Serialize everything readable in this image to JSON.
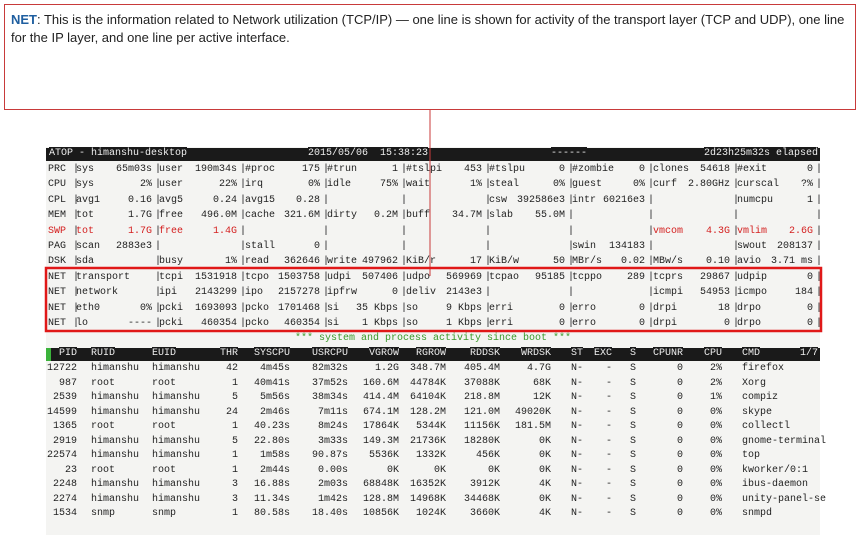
{
  "callout": {
    "term": "NET",
    "text": ": This is the information related to Network utilization (TCP/IP) — one line is shown for activity of the transport layer (TCP and UDP), one line for the IP layer, and one line per active interface."
  },
  "atop": {
    "header": {
      "host": "ATOP - himanshu-desktop",
      "datetime": "2015/05/06  15:38:23",
      "dashes": "------",
      "elapsed": "2d23h25m32s elapsed"
    },
    "rows": [
      {
        "label": "PRC",
        "cells": [
          [
            "sys",
            "65m03s"
          ],
          [
            "user",
            "190m34s"
          ],
          [
            "#proc",
            "175"
          ],
          [
            "#trun",
            "1"
          ],
          [
            "#tslpi",
            "453"
          ],
          [
            "#tslpu",
            "0"
          ],
          [
            "#zombie",
            "0"
          ],
          [
            "clones",
            "54618"
          ],
          [
            "#exit",
            "0"
          ]
        ]
      },
      {
        "label": "CPU",
        "cells": [
          [
            "sys",
            "2%"
          ],
          [
            "user",
            "22%"
          ],
          [
            "irq",
            "0%"
          ],
          [
            "idle",
            "75%"
          ],
          [
            "wait",
            "1%"
          ],
          [
            "steal",
            "0%"
          ],
          [
            "guest",
            "0%"
          ],
          [
            "curf",
            "2.80GHz"
          ],
          [
            "curscal",
            "?%"
          ]
        ]
      },
      {
        "label": "CPL",
        "cells": [
          [
            "avg1",
            "0.16"
          ],
          [
            "avg5",
            "0.24"
          ],
          [
            "avg15",
            "0.28"
          ],
          [],
          [],
          [
            "csw",
            "392586e3"
          ],
          [
            "intr",
            "60216e3"
          ],
          [],
          [
            "numcpu",
            "1"
          ]
        ]
      },
      {
        "label": "MEM",
        "cells": [
          [
            "tot",
            "1.7G"
          ],
          [
            "free",
            "496.0M"
          ],
          [
            "cache",
            "321.6M"
          ],
          [
            "dirty",
            "0.2M"
          ],
          [
            "buff",
            "34.7M"
          ],
          [
            "slab",
            "55.0M"
          ],
          [],
          [],
          []
        ]
      },
      {
        "label": "SWP",
        "color": "#d42020",
        "cells": [
          [
            "tot",
            "1.7G"
          ],
          [
            "free",
            "1.4G"
          ],
          [],
          [],
          [],
          [],
          [],
          [
            "vmcom",
            "4.3G"
          ],
          [
            "vmlim",
            "2.6G"
          ]
        ]
      },
      {
        "label": "PAG",
        "cells": [
          [
            "scan",
            "2883e3"
          ],
          [],
          [
            "stall",
            "0"
          ],
          [],
          [],
          [],
          [
            "swin",
            "134183"
          ],
          [],
          [
            "swout",
            "208137"
          ]
        ]
      },
      {
        "label": "DSK",
        "cells": [
          [
            "sda"
          ],
          [
            "busy",
            "1%"
          ],
          [
            "read",
            "362646"
          ],
          [
            "write",
            "497962"
          ],
          [
            "KiB/r",
            "17"
          ],
          [
            "KiB/w",
            "50"
          ],
          [
            "MBr/s",
            "0.02"
          ],
          [
            "MBw/s",
            "0.10"
          ],
          [
            "avio",
            "3.71 ms"
          ]
        ]
      },
      {
        "label": "NET",
        "cells": [
          [
            "transport"
          ],
          [
            "tcpi",
            "1531918"
          ],
          [
            "tcpo",
            "1503758"
          ],
          [
            "udpi",
            "507406"
          ],
          [
            "udpo",
            "569969"
          ],
          [
            "tcpao",
            "95185"
          ],
          [
            "tcppo",
            "289"
          ],
          [
            "tcprs",
            "29867"
          ],
          [
            "udpip",
            "0"
          ]
        ]
      },
      {
        "label": "NET",
        "cells": [
          [
            "network"
          ],
          [
            "ipi",
            "2143299"
          ],
          [
            "ipo",
            "2157278"
          ],
          [
            "ipfrw",
            "0"
          ],
          [
            "deliv",
            "2143e3"
          ],
          [],
          [],
          [
            "icmpi",
            "54953"
          ],
          [
            "icmpo",
            "184"
          ]
        ]
      },
      {
        "label": "NET",
        "cells": [
          [
            "eth0",
            "0%"
          ],
          [
            "pcki",
            "1693093"
          ],
          [
            "pcko",
            "1701468"
          ],
          [
            "si",
            "35 Kbps"
          ],
          [
            "so",
            "9 Kbps"
          ],
          [
            "erri",
            "0"
          ],
          [
            "erro",
            "0"
          ],
          [
            "drpi",
            "18"
          ],
          [
            "drpo",
            "0"
          ]
        ]
      },
      {
        "label": "NET",
        "cells": [
          [
            "lo",
            "----"
          ],
          [
            "pcki",
            "460354"
          ],
          [
            "pcko",
            "460354"
          ],
          [
            "si",
            "1 Kbps"
          ],
          [
            "so",
            "1 Kbps"
          ],
          [
            "erri",
            "0"
          ],
          [
            "erro",
            "0"
          ],
          [
            "drpi",
            "0"
          ],
          [
            "drpo",
            "0"
          ]
        ]
      }
    ],
    "banner": "*** system and process activity since boot ***",
    "proc": {
      "columns": [
        "PID",
        "RUID",
        "EUID",
        "THR",
        "SYSCPU",
        "USRCPU",
        "VGROW",
        "RGROW",
        "RDDSK",
        "WRDSK",
        "ST",
        "EXC",
        "S",
        "CPUNR",
        "CPU",
        "CMD"
      ],
      "page": "1/7",
      "rows": [
        [
          "12722",
          "himanshu",
          "himanshu",
          "42",
          "4m45s",
          "82m32s",
          "1.2G",
          "348.7M",
          "405.4M",
          "4.7G",
          "N-",
          "-",
          "S",
          "0",
          "2%",
          "firefox"
        ],
        [
          "987",
          "root",
          "root",
          "1",
          "40m41s",
          "37m52s",
          "160.6M",
          "44784K",
          "37088K",
          "68K",
          "N-",
          "-",
          "S",
          "0",
          "2%",
          "Xorg"
        ],
        [
          "2539",
          "himanshu",
          "himanshu",
          "5",
          "5m56s",
          "38m34s",
          "414.4M",
          "64104K",
          "218.8M",
          "12K",
          "N-",
          "-",
          "S",
          "0",
          "1%",
          "compiz"
        ],
        [
          "14599",
          "himanshu",
          "himanshu",
          "24",
          "2m46s",
          "7m11s",
          "674.1M",
          "128.2M",
          "121.0M",
          "49020K",
          "N-",
          "-",
          "S",
          "0",
          "0%",
          "skype"
        ],
        [
          "1365",
          "root",
          "root",
          "1",
          "40.23s",
          "8m24s",
          "17864K",
          "5344K",
          "11156K",
          "181.5M",
          "N-",
          "-",
          "S",
          "0",
          "0%",
          "collectl"
        ],
        [
          "2919",
          "himanshu",
          "himanshu",
          "5",
          "22.80s",
          "3m33s",
          "149.3M",
          "21736K",
          "18280K",
          "0K",
          "N-",
          "-",
          "S",
          "0",
          "0%",
          "gnome-terminal"
        ],
        [
          "22574",
          "himanshu",
          "himanshu",
          "1",
          "1m58s",
          "90.87s",
          "5536K",
          "1332K",
          "456K",
          "0K",
          "N-",
          "-",
          "S",
          "0",
          "0%",
          "top"
        ],
        [
          "23",
          "root",
          "root",
          "1",
          "2m44s",
          "0.00s",
          "0K",
          "0K",
          "0K",
          "0K",
          "N-",
          "-",
          "S",
          "0",
          "0%",
          "kworker/0:1"
        ],
        [
          "2248",
          "himanshu",
          "himanshu",
          "3",
          "16.88s",
          "2m03s",
          "68848K",
          "16352K",
          "3912K",
          "4K",
          "N-",
          "-",
          "S",
          "0",
          "0%",
          "ibus-daemon"
        ],
        [
          "2274",
          "himanshu",
          "himanshu",
          "3",
          "11.34s",
          "1m42s",
          "128.8M",
          "14968K",
          "34468K",
          "0K",
          "N-",
          "-",
          "S",
          "0",
          "0%",
          "unity-panel-se"
        ],
        [
          "1534",
          "snmp",
          "snmp",
          "1",
          "80.58s",
          "18.40s",
          "10856K",
          "1024K",
          "3660K",
          "4K",
          "N-",
          "-",
          "S",
          "0",
          "0%",
          "snmpd"
        ]
      ]
    }
  }
}
